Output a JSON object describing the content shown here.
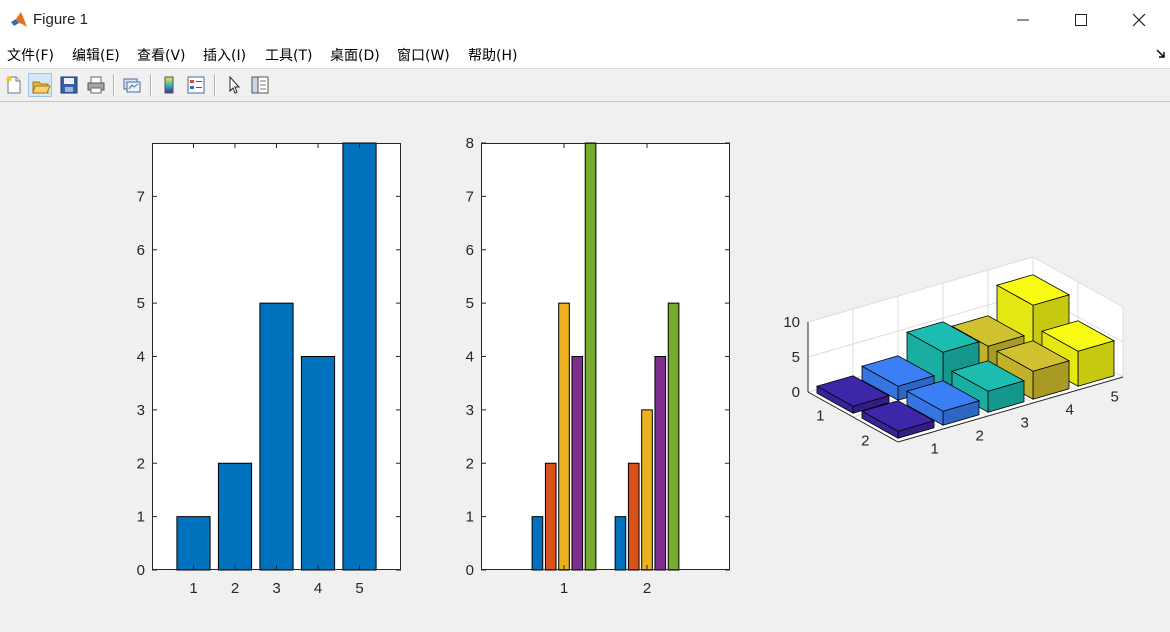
{
  "window": {
    "title": "Figure 1"
  },
  "menu": [
    {
      "label": "文件(F)"
    },
    {
      "label": "编辑(E)"
    },
    {
      "label": "查看(V)"
    },
    {
      "label": "插入(I)"
    },
    {
      "label": "工具(T)"
    },
    {
      "label": "桌面(D)"
    },
    {
      "label": "窗口(W)"
    },
    {
      "label": "帮助(H)"
    }
  ],
  "toolbar": {
    "buttons": [
      "new-figure-icon",
      "open-file-icon",
      "save-icon",
      "print-icon",
      "link-plot-icon",
      "colorbar-icon",
      "legend-icon",
      "edit-plot-cursor-icon",
      "property-inspector-icon"
    ]
  },
  "colors": {
    "bar_single": "#0072bd",
    "series": [
      "#0072bd",
      "#d95319",
      "#edb120",
      "#7e2f8e",
      "#77ac30"
    ],
    "bar3_rows": [
      "#3e26a8",
      "#3a7ff5",
      "#1cbdb0",
      "#d2c12e",
      "#f9fb15"
    ]
  },
  "chart_data": [
    {
      "type": "bar",
      "categories": [
        "1",
        "2",
        "3",
        "4",
        "5"
      ],
      "values": [
        1,
        2,
        5,
        4,
        8
      ],
      "ylim": [
        0,
        8
      ],
      "yticks": [
        "0",
        "1",
        "2",
        "3",
        "4",
        "5",
        "6",
        "7"
      ],
      "grid": false
    },
    {
      "type": "bar",
      "categories": [
        "1",
        "2"
      ],
      "series": [
        {
          "values": [
            1,
            1
          ]
        },
        {
          "values": [
            2,
            2
          ]
        },
        {
          "values": [
            5,
            3
          ]
        },
        {
          "values": [
            4,
            4
          ]
        },
        {
          "values": [
            8,
            5
          ]
        }
      ],
      "ylim": [
        0,
        8
      ],
      "yticks": [
        "0",
        "1",
        "2",
        "3",
        "4",
        "5",
        "6",
        "7",
        "8"
      ],
      "grid": false
    },
    {
      "type": "bar3",
      "x_categories": [
        "1",
        "2"
      ],
      "y_categories": [
        "1",
        "2",
        "3",
        "4",
        "5"
      ],
      "values": [
        [
          1,
          1
        ],
        [
          2,
          2
        ],
        [
          5,
          3
        ],
        [
          4,
          4
        ],
        [
          8,
          5
        ]
      ],
      "zticks": [
        "0",
        "5",
        "10"
      ],
      "zlim": [
        0,
        10
      ],
      "grid": true
    }
  ]
}
